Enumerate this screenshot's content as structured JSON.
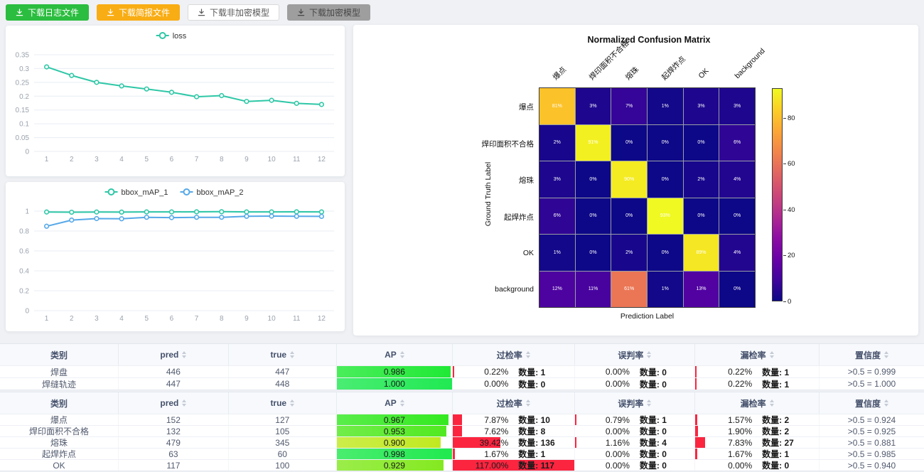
{
  "toolbar": {
    "buttons": [
      {
        "name": "download-log-button",
        "label": "下载日志文件",
        "variant": "green"
      },
      {
        "name": "download-report-button",
        "label": "下载简报文件",
        "variant": "orange"
      },
      {
        "name": "download-plain-model-button",
        "label": "下载非加密模型",
        "variant": "plain"
      },
      {
        "name": "download-encrypted-model-button",
        "label": "下载加密模型",
        "variant": "gray"
      }
    ]
  },
  "chart_data": [
    {
      "type": "line",
      "legend": [
        "loss"
      ],
      "x": [
        1,
        2,
        3,
        4,
        5,
        6,
        7,
        8,
        9,
        10,
        11,
        12
      ],
      "series": [
        {
          "name": "loss",
          "color": "#2ec7a6",
          "values": [
            0.306,
            0.275,
            0.25,
            0.237,
            0.226,
            0.214,
            0.198,
            0.202,
            0.181,
            0.185,
            0.174,
            0.17
          ]
        }
      ],
      "ylim": [
        0,
        0.35
      ],
      "yticks": [
        0,
        0.05,
        0.1,
        0.15,
        0.2,
        0.25,
        0.3,
        0.35
      ],
      "grid": true,
      "legend_position": "top"
    },
    {
      "type": "line",
      "legend": [
        "bbox_mAP_1",
        "bbox_mAP_2"
      ],
      "x": [
        1,
        2,
        3,
        4,
        5,
        6,
        7,
        8,
        9,
        10,
        11,
        12
      ],
      "series": [
        {
          "name": "bbox_mAP_1",
          "color": "#2ec7a6",
          "values": [
            0.991,
            0.989,
            0.991,
            0.99,
            0.992,
            0.992,
            0.993,
            0.994,
            0.992,
            0.992,
            0.993,
            0.992
          ]
        },
        {
          "name": "bbox_mAP_2",
          "color": "#56a8e8",
          "values": [
            0.848,
            0.91,
            0.925,
            0.923,
            0.938,
            0.935,
            0.938,
            0.938,
            0.948,
            0.95,
            0.948,
            0.947
          ]
        }
      ],
      "ylim": [
        0,
        1
      ],
      "yticks": [
        0,
        0.2,
        0.4,
        0.6,
        0.8,
        1
      ],
      "grid": true,
      "legend_position": "top"
    },
    {
      "type": "heatmap",
      "title": "Normalized Confusion Matrix",
      "xlabel": "Prediction Label",
      "ylabel": "Ground Truth Label",
      "labels": [
        "爆点",
        "焊印面积不合格",
        "熔珠",
        "起焊炸点",
        "OK",
        "background"
      ],
      "values_percent": [
        [
          81,
          3,
          7,
          1,
          3,
          3
        ],
        [
          2,
          91,
          0,
          0,
          0,
          6
        ],
        [
          3,
          0,
          90,
          0,
          2,
          4
        ],
        [
          6,
          0,
          0,
          93,
          0,
          0
        ],
        [
          1,
          0,
          2,
          0,
          89,
          4
        ],
        [
          12,
          11,
          61,
          1,
          13,
          0
        ]
      ],
      "vmax": 93,
      "colormap": "plasma",
      "colorbar_ticks": [
        0,
        20,
        40,
        60,
        80
      ]
    }
  ],
  "count_label": "数量:",
  "rate_bar_color": "#fb2540",
  "tables": [
    {
      "columns": [
        {
          "label": "类别",
          "key": "name",
          "sortable": false
        },
        {
          "label": "pred",
          "key": "pred",
          "sortable": true
        },
        {
          "label": "true",
          "key": "true",
          "sortable": true
        },
        {
          "label": "AP",
          "key": "ap",
          "sortable": true,
          "type": "ap"
        },
        {
          "label": "过检率",
          "key": "over",
          "sortable": true,
          "type": "rate"
        },
        {
          "label": "误判率",
          "key": "mis",
          "sortable": true,
          "type": "rate"
        },
        {
          "label": "漏检率",
          "key": "miss",
          "sortable": true,
          "type": "rate"
        },
        {
          "label": "置信度",
          "key": "conf",
          "sortable": true
        }
      ],
      "widths": [
        12.85,
        11.9,
        11.7,
        12.55,
        13.2,
        13.05,
        13.45,
        11.3
      ],
      "rows": [
        {
          "name": "焊盘",
          "pred": "446",
          "true": "447",
          "ap": "0.986",
          "over": {
            "pct": "0.22%",
            "n": "1"
          },
          "mis": {
            "pct": "0.00%",
            "n": "0"
          },
          "miss": {
            "pct": "0.22%",
            "n": "1"
          },
          "conf": ">0.5 = 0.999"
        },
        {
          "name": "焊缝轨迹",
          "pred": "447",
          "true": "448",
          "ap": "1.000",
          "over": {
            "pct": "0.00%",
            "n": "0"
          },
          "mis": {
            "pct": "0.00%",
            "n": "0"
          },
          "miss": {
            "pct": "0.22%",
            "n": "1"
          },
          "conf": ">0.5 = 1.000"
        }
      ]
    },
    {
      "columns": [
        {
          "label": "类别",
          "key": "name",
          "sortable": false
        },
        {
          "label": "pred",
          "key": "pred",
          "sortable": true
        },
        {
          "label": "true",
          "key": "true",
          "sortable": true
        },
        {
          "label": "AP",
          "key": "ap",
          "sortable": true,
          "type": "ap"
        },
        {
          "label": "过检率",
          "key": "over",
          "sortable": true,
          "type": "rate"
        },
        {
          "label": "误判率",
          "key": "mis",
          "sortable": true,
          "type": "rate"
        },
        {
          "label": "漏检率",
          "key": "miss",
          "sortable": true,
          "type": "rate"
        },
        {
          "label": "置信度",
          "key": "conf",
          "sortable": true
        }
      ],
      "widths": [
        12.85,
        11.9,
        11.7,
        12.55,
        13.2,
        13.05,
        13.45,
        11.3
      ],
      "rows": [
        {
          "name": "爆点",
          "pred": "152",
          "true": "127",
          "ap": "0.967",
          "over": {
            "pct": "7.87%",
            "n": "10"
          },
          "mis": {
            "pct": "0.79%",
            "n": "1"
          },
          "miss": {
            "pct": "1.57%",
            "n": "2"
          },
          "conf": ">0.5 = 0.924"
        },
        {
          "name": "焊印面积不合格",
          "pred": "132",
          "true": "105",
          "ap": "0.953",
          "over": {
            "pct": "7.62%",
            "n": "8"
          },
          "mis": {
            "pct": "0.00%",
            "n": "0"
          },
          "miss": {
            "pct": "1.90%",
            "n": "2"
          },
          "conf": ">0.5 = 0.925"
        },
        {
          "name": "熔珠",
          "pred": "479",
          "true": "345",
          "ap": "0.900",
          "over": {
            "pct": "39.42%",
            "n": "136"
          },
          "mis": {
            "pct": "1.16%",
            "n": "4"
          },
          "miss": {
            "pct": "7.83%",
            "n": "27"
          },
          "conf": ">0.5 = 0.881"
        },
        {
          "name": "起焊炸点",
          "pred": "63",
          "true": "60",
          "ap": "0.998",
          "over": {
            "pct": "1.67%",
            "n": "1"
          },
          "mis": {
            "pct": "0.00%",
            "n": "0"
          },
          "miss": {
            "pct": "1.67%",
            "n": "1"
          },
          "conf": ">0.5 = 0.985"
        },
        {
          "name": "OK",
          "pred": "117",
          "true": "100",
          "ap": "0.929",
          "over": {
            "pct": "117.00%",
            "n": "117"
          },
          "mis": {
            "pct": "0.00%",
            "n": "0"
          },
          "miss": {
            "pct": "0.00%",
            "n": "0"
          },
          "conf": ">0.5 = 0.940"
        }
      ]
    }
  ]
}
